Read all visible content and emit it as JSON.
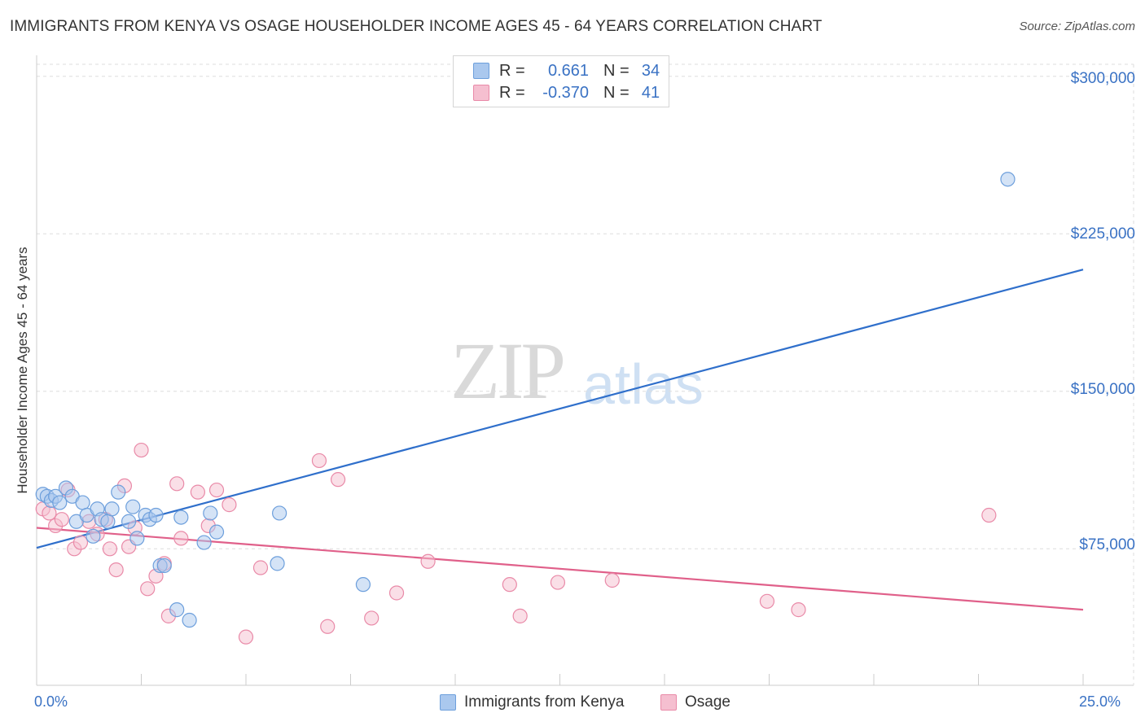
{
  "title": "IMMIGRANTS FROM KENYA VS OSAGE HOUSEHOLDER INCOME AGES 45 - 64 YEARS CORRELATION CHART",
  "source": "Source: ZipAtlas.com",
  "watermark_zip": "ZIP",
  "watermark_atlas": "atlas",
  "legend": {
    "rows": [
      {
        "r_label": "R =",
        "r_value": "0.661",
        "n_label": "N =",
        "n_value": "34"
      },
      {
        "r_label": "R =",
        "r_value": "-0.370",
        "n_label": "N =",
        "n_value": "41"
      }
    ]
  },
  "colors": {
    "blue_fill": "#aac8ee",
    "blue_stroke": "#6d9fdc",
    "blue_line": "#2f6fcb",
    "pink_fill": "#f5bfd0",
    "pink_stroke": "#e98aa8",
    "pink_line": "#e0608a",
    "grid": "#dddddd",
    "axis_text": "#3a72c4"
  },
  "chart_data": {
    "type": "scatter",
    "title": "IMMIGRANTS FROM KENYA VS OSAGE HOUSEHOLDER INCOME AGES 45 - 64 YEARS CORRELATION CHART",
    "xlabel": "",
    "ylabel": "Householder Income Ages 45 - 64 years",
    "xlim": [
      0,
      25
    ],
    "ylim": [
      10000,
      310000
    ],
    "x_tick_labels": [
      "0.0%",
      "25.0%"
    ],
    "y_ticks": [
      75000,
      150000,
      225000,
      300000
    ],
    "y_tick_labels": [
      "$75,000",
      "$150,000",
      "$225,000",
      "$300,000"
    ],
    "legend_position": "bottom-center",
    "series": [
      {
        "name": "Immigrants from Kenya",
        "color": "blue",
        "trend": {
          "x": [
            0,
            25
          ],
          "y": [
            75500,
            208000
          ]
        },
        "points": [
          {
            "x": 0.15,
            "y": 101000
          },
          {
            "x": 0.25,
            "y": 100000
          },
          {
            "x": 0.35,
            "y": 98000
          },
          {
            "x": 0.45,
            "y": 100000
          },
          {
            "x": 0.55,
            "y": 97000
          },
          {
            "x": 0.7,
            "y": 104000
          },
          {
            "x": 0.85,
            "y": 100000
          },
          {
            "x": 0.95,
            "y": 88000
          },
          {
            "x": 1.1,
            "y": 97000
          },
          {
            "x": 1.2,
            "y": 91000
          },
          {
            "x": 1.35,
            "y": 81000
          },
          {
            "x": 1.45,
            "y": 94000
          },
          {
            "x": 1.55,
            "y": 89000
          },
          {
            "x": 1.7,
            "y": 88000
          },
          {
            "x": 1.8,
            "y": 94000
          },
          {
            "x": 1.95,
            "y": 102000
          },
          {
            "x": 2.2,
            "y": 88000
          },
          {
            "x": 2.3,
            "y": 95000
          },
          {
            "x": 2.4,
            "y": 80000
          },
          {
            "x": 2.6,
            "y": 91000
          },
          {
            "x": 2.7,
            "y": 89000
          },
          {
            "x": 2.85,
            "y": 91000
          },
          {
            "x": 2.95,
            "y": 67000
          },
          {
            "x": 3.05,
            "y": 67000
          },
          {
            "x": 3.35,
            "y": 46000
          },
          {
            "x": 3.45,
            "y": 90000
          },
          {
            "x": 3.65,
            "y": 41000
          },
          {
            "x": 4.0,
            "y": 78000
          },
          {
            "x": 4.15,
            "y": 92000
          },
          {
            "x": 4.3,
            "y": 83000
          },
          {
            "x": 5.8,
            "y": 92000
          },
          {
            "x": 5.75,
            "y": 68000
          },
          {
            "x": 7.8,
            "y": 58000
          },
          {
            "x": 23.2,
            "y": 251000
          }
        ]
      },
      {
        "name": "Osage",
        "color": "pink",
        "trend": {
          "x": [
            0,
            25
          ],
          "y": [
            85000,
            46000
          ]
        },
        "points": [
          {
            "x": 0.15,
            "y": 94000
          },
          {
            "x": 0.3,
            "y": 92000
          },
          {
            "x": 0.45,
            "y": 86000
          },
          {
            "x": 0.6,
            "y": 89000
          },
          {
            "x": 0.75,
            "y": 103000
          },
          {
            "x": 0.9,
            "y": 75000
          },
          {
            "x": 1.05,
            "y": 78000
          },
          {
            "x": 1.25,
            "y": 88000
          },
          {
            "x": 1.45,
            "y": 82000
          },
          {
            "x": 1.65,
            "y": 89000
          },
          {
            "x": 1.75,
            "y": 75000
          },
          {
            "x": 1.9,
            "y": 65000
          },
          {
            "x": 2.1,
            "y": 105000
          },
          {
            "x": 2.2,
            "y": 76000
          },
          {
            "x": 2.35,
            "y": 85000
          },
          {
            "x": 2.5,
            "y": 122000
          },
          {
            "x": 2.65,
            "y": 56000
          },
          {
            "x": 2.85,
            "y": 62000
          },
          {
            "x": 3.05,
            "y": 68000
          },
          {
            "x": 3.15,
            "y": 43000
          },
          {
            "x": 3.35,
            "y": 106000
          },
          {
            "x": 3.45,
            "y": 80000
          },
          {
            "x": 3.85,
            "y": 102000
          },
          {
            "x": 4.1,
            "y": 86000
          },
          {
            "x": 4.3,
            "y": 103000
          },
          {
            "x": 4.6,
            "y": 96000
          },
          {
            "x": 5.0,
            "y": 33000
          },
          {
            "x": 5.35,
            "y": 66000
          },
          {
            "x": 6.75,
            "y": 117000
          },
          {
            "x": 6.95,
            "y": 38000
          },
          {
            "x": 7.2,
            "y": 108000
          },
          {
            "x": 8.0,
            "y": 42000
          },
          {
            "x": 8.6,
            "y": 54000
          },
          {
            "x": 9.35,
            "y": 69000
          },
          {
            "x": 11.3,
            "y": 58000
          },
          {
            "x": 11.55,
            "y": 43000
          },
          {
            "x": 12.45,
            "y": 59000
          },
          {
            "x": 13.75,
            "y": 60000
          },
          {
            "x": 17.45,
            "y": 50000
          },
          {
            "x": 18.2,
            "y": 46000
          },
          {
            "x": 22.75,
            "y": 91000
          }
        ]
      }
    ]
  }
}
